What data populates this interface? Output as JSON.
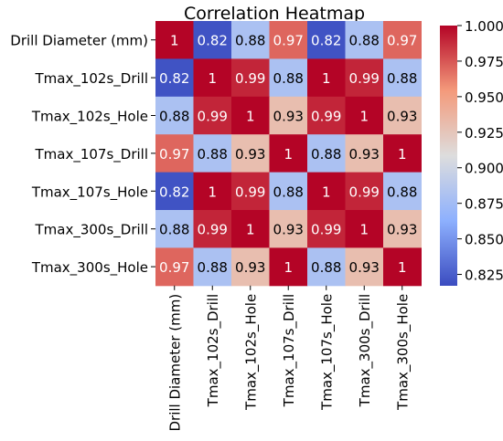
{
  "chart_data": {
    "type": "heatmap",
    "title": "Correlation Heatmap",
    "rows": [
      "Drill Diameter (mm)",
      "Tmax_102s_Drill",
      "Tmax_102s_Hole",
      "Tmax_107s_Drill",
      "Tmax_107s_Hole",
      "Tmax_300s_Drill",
      "Tmax_300s_Hole"
    ],
    "columns": [
      "Drill Diameter (mm)",
      "Tmax_102s_Drill",
      "Tmax_102s_Hole",
      "Tmax_107s_Drill",
      "Tmax_107s_Hole",
      "Tmax_300s_Drill",
      "Tmax_300s_Hole"
    ],
    "values": [
      [
        1.0,
        0.82,
        0.88,
        0.97,
        0.82,
        0.88,
        0.97
      ],
      [
        0.82,
        1.0,
        0.99,
        0.88,
        1.0,
        0.99,
        0.88
      ],
      [
        0.88,
        0.99,
        1.0,
        0.93,
        0.99,
        1.0,
        0.93
      ],
      [
        0.97,
        0.88,
        0.93,
        1.0,
        0.88,
        0.93,
        1.0
      ],
      [
        0.82,
        1.0,
        0.99,
        0.88,
        1.0,
        0.99,
        0.88
      ],
      [
        0.88,
        0.99,
        1.0,
        0.93,
        0.99,
        1.0,
        0.93
      ],
      [
        0.97,
        0.88,
        0.93,
        1.0,
        0.88,
        0.93,
        1.0
      ]
    ],
    "labels": [
      [
        "1",
        "0.82",
        "0.88",
        "0.97",
        "0.82",
        "0.88",
        "0.97"
      ],
      [
        "0.82",
        "1",
        "0.99",
        "0.88",
        "1",
        "0.99",
        "0.88"
      ],
      [
        "0.88",
        "0.99",
        "1",
        "0.93",
        "0.99",
        "1",
        "0.93"
      ],
      [
        "0.97",
        "0.88",
        "0.93",
        "1",
        "0.88",
        "0.93",
        "1"
      ],
      [
        "0.82",
        "1",
        "0.99",
        "0.88",
        "1",
        "0.99",
        "0.88"
      ],
      [
        "0.88",
        "0.99",
        "1",
        "0.93",
        "0.99",
        "1",
        "0.93"
      ],
      [
        "0.97",
        "0.88",
        "0.93",
        "1",
        "0.88",
        "0.93",
        "1"
      ]
    ],
    "colormap": "coolwarm",
    "vmin": 0.817,
    "vmax": 1.0,
    "colorbar_ticks": [
      "1.000",
      "0.975",
      "0.950",
      "0.925",
      "0.900",
      "0.875",
      "0.850",
      "0.825"
    ],
    "grid": false,
    "legend": "colorbar-right"
  }
}
